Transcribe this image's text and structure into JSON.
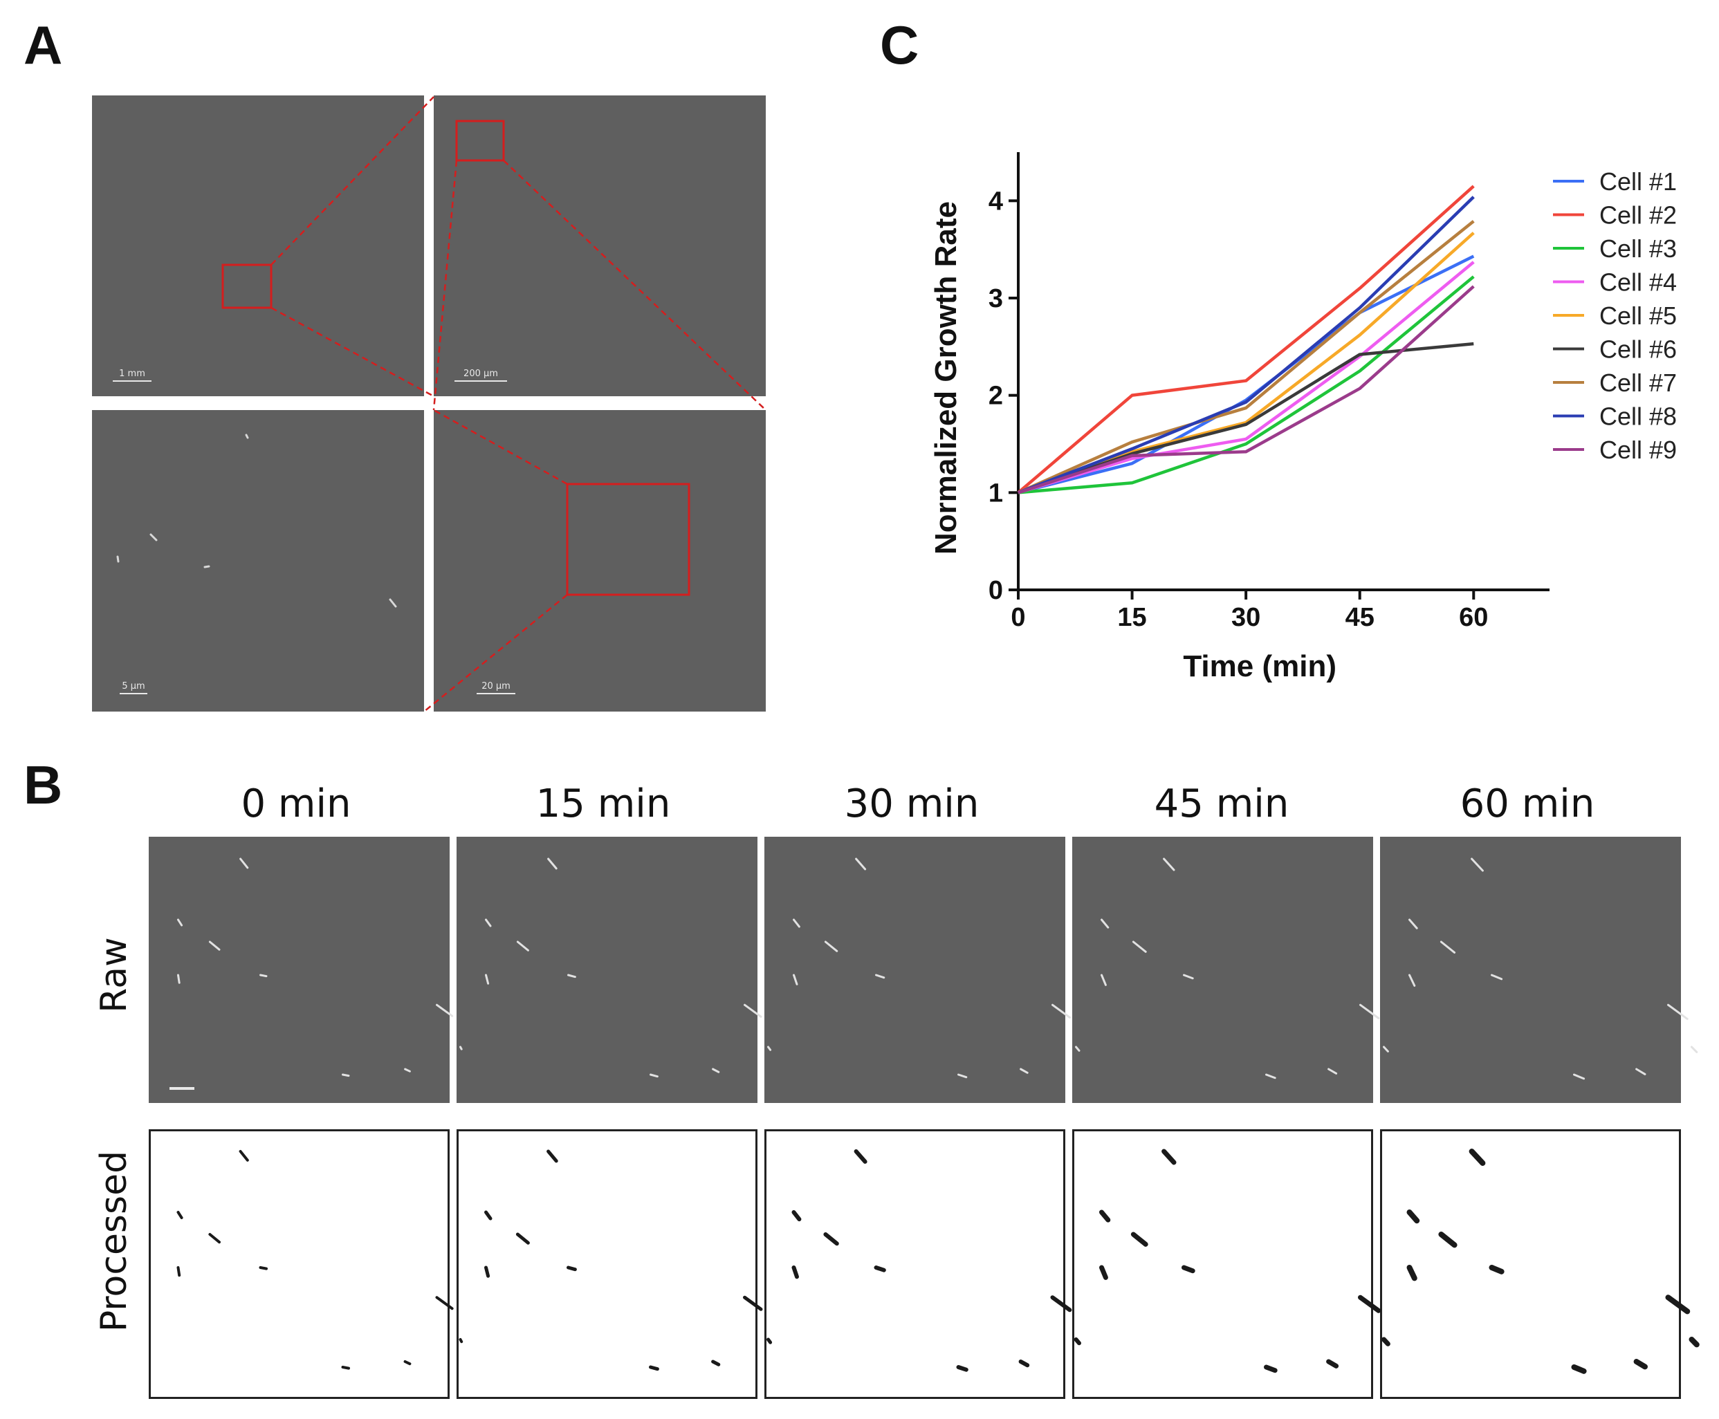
{
  "panels": {
    "a": "A",
    "b": "B",
    "c": "C"
  },
  "panel_a": {
    "scale_bars": [
      "1 mm",
      "200 μm",
      "5 μm",
      "20 μm"
    ],
    "zoom_color": "#d41e1e"
  },
  "panel_b": {
    "time_labels": [
      "0 min",
      "15 min",
      "30 min",
      "45 min",
      "60 min"
    ],
    "row_labels": {
      "raw": "Raw",
      "processed": "Processed"
    }
  },
  "chart_data": {
    "type": "line",
    "title": "",
    "xlabel": "Time (min)",
    "ylabel": "Normalized  Growth Rate",
    "x": [
      0,
      15,
      30,
      45,
      60
    ],
    "xlim": [
      0,
      70
    ],
    "ylim": [
      0,
      4.5
    ],
    "xticks": [
      0,
      15,
      30,
      45,
      60
    ],
    "yticks": [
      0,
      1,
      2,
      3,
      4
    ],
    "legend": "right",
    "series": [
      {
        "name": "Cell #1",
        "color": "#3b6ff5",
        "values": [
          1,
          1.3,
          1.95,
          2.85,
          3.43
        ]
      },
      {
        "name": "Cell #2",
        "color": "#f0453a",
        "values": [
          1,
          2.0,
          2.15,
          3.1,
          4.15
        ]
      },
      {
        "name": "Cell #3",
        "color": "#1fc43a",
        "values": [
          1,
          1.1,
          1.5,
          2.25,
          3.22
        ]
      },
      {
        "name": "Cell #4",
        "color": "#ee5cf0",
        "values": [
          1,
          1.35,
          1.55,
          2.4,
          3.37
        ]
      },
      {
        "name": "Cell #5",
        "color": "#f7a928",
        "values": [
          1,
          1.42,
          1.72,
          2.62,
          3.67
        ]
      },
      {
        "name": "Cell #6",
        "color": "#3a3a3a",
        "values": [
          1,
          1.4,
          1.7,
          2.42,
          2.53
        ]
      },
      {
        "name": "Cell #7",
        "color": "#b77f3e",
        "values": [
          1,
          1.52,
          1.87,
          2.85,
          3.79
        ]
      },
      {
        "name": "Cell #8",
        "color": "#2a3db3",
        "values": [
          1,
          1.45,
          1.93,
          2.9,
          4.04
        ]
      },
      {
        "name": "Cell #9",
        "color": "#9b3b8b",
        "values": [
          1,
          1.38,
          1.42,
          2.07,
          3.12
        ]
      }
    ]
  }
}
